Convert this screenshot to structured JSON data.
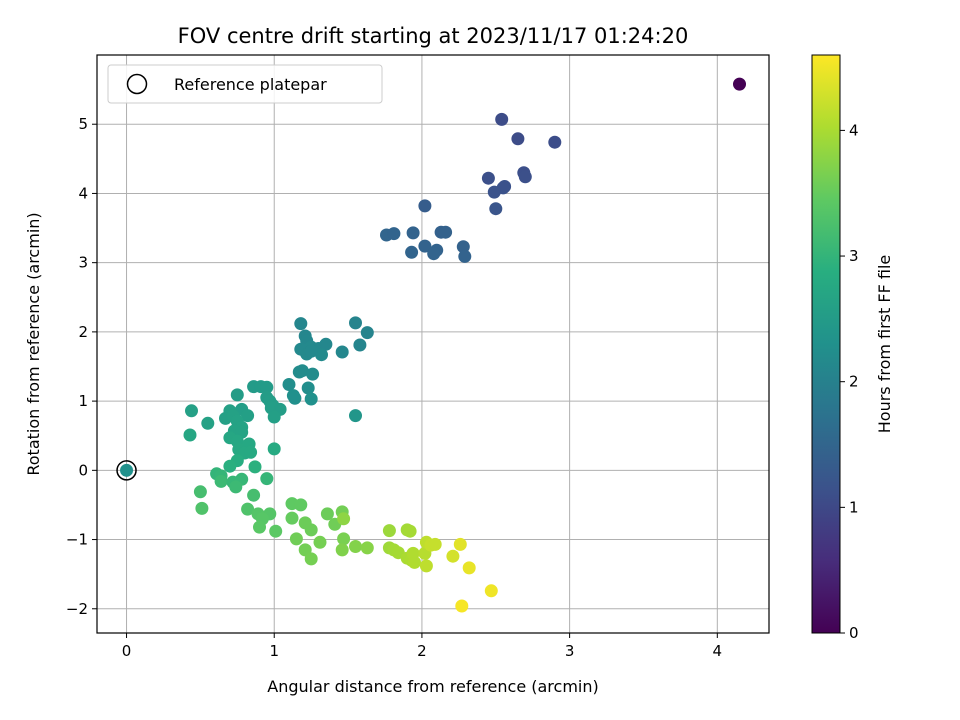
{
  "chart_data": {
    "type": "scatter",
    "title": "FOV centre drift starting at 2023/11/17 01:24:20",
    "xlabel": "Angular distance from reference (arcmin)",
    "ylabel": "Rotation from reference (arcmin)",
    "xlim": [
      -0.2,
      4.35
    ],
    "ylim": [
      -2.35,
      6.0
    ],
    "xticks": [
      0,
      1,
      2,
      3,
      4
    ],
    "yticks": [
      -2,
      -1,
      0,
      1,
      2,
      3,
      4,
      5
    ],
    "grid": true,
    "legend": {
      "placement": "top-left",
      "entries": [
        "Reference platepar"
      ]
    },
    "reference": {
      "x": 0,
      "y": 0
    },
    "colorbar": {
      "label": "Hours from first FF file",
      "colormap": "viridis",
      "range": [
        0,
        4.6
      ],
      "ticks": [
        0,
        1,
        2,
        3,
        4
      ]
    },
    "series": [
      {
        "points": [
          [
            4.15,
            5.58,
            0.0
          ],
          [
            2.54,
            5.07,
            1.05
          ],
          [
            2.65,
            4.79,
            1.05
          ],
          [
            2.9,
            4.74,
            1.08
          ],
          [
            2.45,
            4.22,
            1.12
          ],
          [
            2.69,
            4.3,
            1.1
          ],
          [
            2.7,
            4.24,
            1.12
          ],
          [
            2.56,
            4.1,
            1.15
          ],
          [
            2.55,
            4.08,
            1.15
          ],
          [
            2.49,
            4.02,
            1.16
          ],
          [
            2.5,
            3.78,
            1.2
          ],
          [
            2.02,
            3.82,
            1.35
          ],
          [
            1.76,
            3.4,
            1.5
          ],
          [
            1.81,
            3.42,
            1.48
          ],
          [
            1.94,
            3.43,
            1.45
          ],
          [
            2.13,
            3.44,
            1.42
          ],
          [
            2.16,
            3.44,
            1.43
          ],
          [
            2.02,
            3.24,
            1.45
          ],
          [
            2.28,
            3.23,
            1.43
          ],
          [
            2.1,
            3.18,
            1.45
          ],
          [
            2.08,
            3.13,
            1.47
          ],
          [
            1.93,
            3.15,
            1.48
          ],
          [
            2.29,
            3.09,
            1.45
          ],
          [
            1.18,
            2.12,
            2.1
          ],
          [
            1.21,
            1.94,
            2.1
          ],
          [
            1.22,
            1.87,
            2.12
          ],
          [
            1.55,
            2.13,
            2.05
          ],
          [
            1.63,
            1.99,
            2.05
          ],
          [
            1.58,
            1.81,
            2.08
          ],
          [
            1.18,
            1.75,
            2.15
          ],
          [
            1.25,
            1.78,
            2.15
          ],
          [
            1.3,
            1.76,
            2.14
          ],
          [
            1.35,
            1.82,
            2.12
          ],
          [
            1.46,
            1.71,
            2.12
          ],
          [
            1.22,
            1.68,
            2.16
          ],
          [
            1.32,
            1.67,
            2.17
          ],
          [
            1.25,
            1.72,
            2.15
          ],
          [
            1.17,
            1.42,
            2.2
          ],
          [
            1.19,
            1.44,
            2.2
          ],
          [
            1.26,
            1.39,
            2.2
          ],
          [
            1.1,
            1.24,
            2.25
          ],
          [
            1.23,
            1.19,
            2.25
          ],
          [
            1.13,
            1.08,
            2.28
          ],
          [
            1.14,
            1.04,
            2.28
          ],
          [
            1.25,
            1.03,
            2.3
          ],
          [
            1.55,
            0.79,
            2.4
          ],
          [
            0.86,
            1.21,
            2.5
          ],
          [
            0.91,
            1.21,
            2.5
          ],
          [
            0.95,
            1.2,
            2.5
          ],
          [
            0.75,
            1.09,
            2.52
          ],
          [
            0.95,
            1.05,
            2.52
          ],
          [
            0.97,
            1.0,
            2.53
          ],
          [
            0.99,
            0.94,
            2.53
          ],
          [
            0.98,
            0.9,
            2.55
          ],
          [
            1.04,
            0.88,
            2.53
          ],
          [
            0.78,
            0.88,
            2.55
          ],
          [
            0.7,
            0.86,
            2.6
          ],
          [
            0.44,
            0.86,
            2.6
          ],
          [
            0.67,
            0.75,
            2.6
          ],
          [
            0.82,
            0.79,
            2.58
          ],
          [
            1.0,
            0.77,
            2.58
          ],
          [
            0.55,
            0.68,
            2.62
          ],
          [
            0.72,
            0.79,
            2.62
          ],
          [
            0.75,
            0.71,
            2.63
          ],
          [
            0.78,
            0.62,
            2.65
          ],
          [
            0.73,
            0.57,
            2.66
          ],
          [
            0.78,
            0.55,
            2.66
          ],
          [
            0.43,
            0.51,
            2.72
          ],
          [
            0.7,
            0.47,
            2.72
          ],
          [
            0.75,
            0.42,
            2.73
          ],
          [
            0.83,
            0.38,
            2.75
          ],
          [
            0.76,
            0.3,
            2.76
          ],
          [
            1.0,
            0.31,
            2.8
          ],
          [
            0.8,
            0.25,
            2.78
          ],
          [
            0.84,
            0.26,
            2.78
          ],
          [
            0.75,
            0.14,
            2.85
          ],
          [
            0.7,
            0.06,
            2.9
          ],
          [
            0.87,
            0.05,
            2.92
          ],
          [
            0.61,
            -0.05,
            3.0
          ],
          [
            0.64,
            -0.08,
            3.02
          ],
          [
            0.95,
            -0.12,
            3.02
          ],
          [
            0.78,
            -0.13,
            3.05
          ],
          [
            0.64,
            -0.16,
            3.1
          ],
          [
            0.72,
            -0.17,
            3.05
          ],
          [
            0.74,
            -0.24,
            3.1
          ],
          [
            0.5,
            -0.31,
            3.2
          ],
          [
            0.86,
            -0.36,
            3.2
          ],
          [
            0.51,
            -0.55,
            3.3
          ],
          [
            0.82,
            -0.56,
            3.3
          ],
          [
            0.89,
            -0.63,
            3.35
          ],
          [
            0.97,
            -0.63,
            3.35
          ],
          [
            0.92,
            -0.7,
            3.38
          ],
          [
            0.9,
            -0.82,
            3.4
          ],
          [
            1.01,
            -0.88,
            3.42
          ],
          [
            1.12,
            -0.48,
            3.45
          ],
          [
            1.18,
            -0.5,
            3.46
          ],
          [
            1.12,
            -0.69,
            3.5
          ],
          [
            1.21,
            -0.76,
            3.55
          ],
          [
            1.25,
            -0.86,
            3.55
          ],
          [
            1.15,
            -0.99,
            3.58
          ],
          [
            1.21,
            -1.15,
            3.6
          ],
          [
            1.25,
            -1.28,
            3.62
          ],
          [
            1.31,
            -1.04,
            3.62
          ],
          [
            1.36,
            -0.63,
            3.55
          ],
          [
            1.41,
            -0.78,
            3.58
          ],
          [
            1.46,
            -0.6,
            3.6
          ],
          [
            1.47,
            -0.99,
            3.65
          ],
          [
            1.46,
            -1.15,
            3.7
          ],
          [
            1.55,
            -1.1,
            3.72
          ],
          [
            1.63,
            -1.12,
            3.75
          ],
          [
            1.47,
            -0.7,
            3.8
          ],
          [
            1.78,
            -0.87,
            3.9
          ],
          [
            1.78,
            -1.12,
            3.92
          ],
          [
            1.81,
            -1.15,
            3.95
          ],
          [
            1.84,
            -1.19,
            3.97
          ],
          [
            1.9,
            -0.86,
            3.95
          ],
          [
            1.92,
            -0.88,
            3.97
          ],
          [
            1.9,
            -1.27,
            4.0
          ],
          [
            1.93,
            -1.3,
            4.02
          ],
          [
            1.94,
            -1.2,
            4.05
          ],
          [
            1.95,
            -1.33,
            4.05
          ],
          [
            2.02,
            -1.2,
            4.1
          ],
          [
            2.03,
            -1.38,
            4.15
          ],
          [
            2.03,
            -1.04,
            4.15
          ],
          [
            2.06,
            -1.08,
            4.2
          ],
          [
            2.09,
            -1.07,
            4.2
          ],
          [
            2.21,
            -1.24,
            4.3
          ],
          [
            2.26,
            -1.07,
            4.4
          ],
          [
            2.32,
            -1.41,
            4.45
          ],
          [
            2.47,
            -1.74,
            4.5
          ],
          [
            2.27,
            -1.96,
            4.55
          ]
        ]
      }
    ]
  }
}
